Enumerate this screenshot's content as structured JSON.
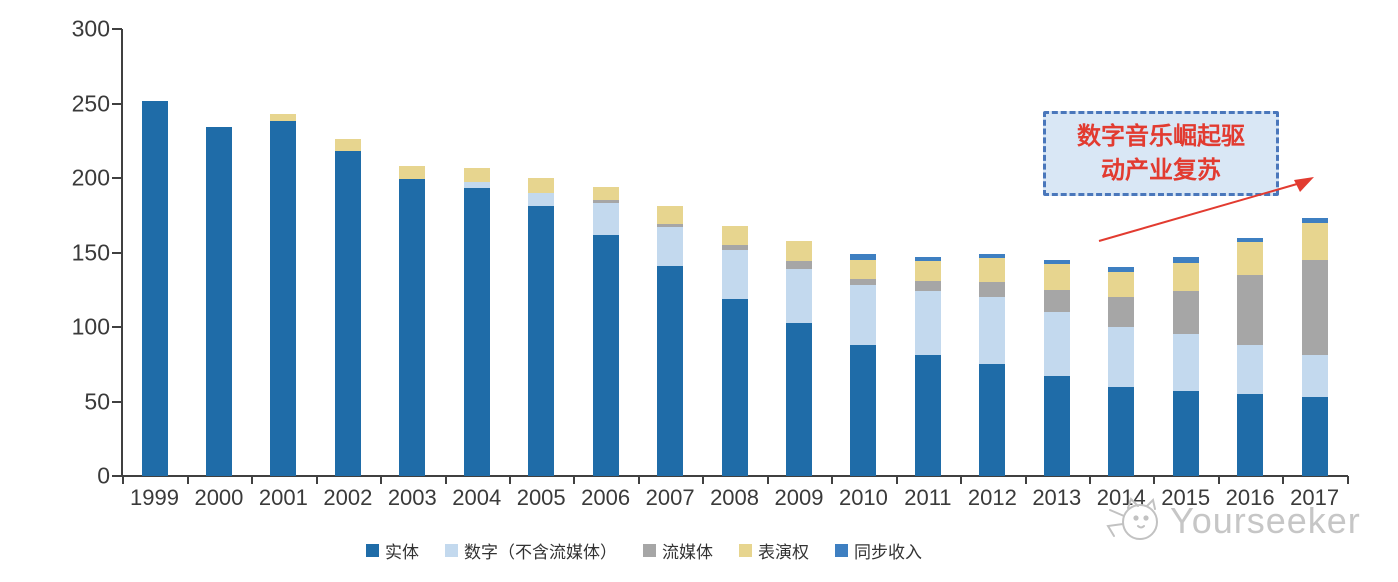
{
  "chart_data": {
    "type": "bar",
    "stacked": true,
    "title": "",
    "xlabel": "",
    "ylabel": "",
    "ylim": [
      0,
      300
    ],
    "y_ticks": [
      0,
      50,
      100,
      150,
      200,
      250,
      300
    ],
    "grid": false,
    "legend_position": "bottom",
    "categories": [
      "1999",
      "2000",
      "2001",
      "2002",
      "2003",
      "2004",
      "2005",
      "2006",
      "2007",
      "2008",
      "2009",
      "2010",
      "2011",
      "2012",
      "2013",
      "2014",
      "2015",
      "2016",
      "2017"
    ],
    "series": [
      {
        "name": "实体",
        "key": "physical",
        "color": "#1f6ca8",
        "values": [
          252,
          234,
          238,
          218,
          199,
          193,
          181,
          162,
          141,
          119,
          103,
          88,
          81,
          75,
          67,
          60,
          57,
          55,
          53
        ]
      },
      {
        "name": "数字（不含流媒体）",
        "key": "digital-excl-streaming",
        "color": "#c3d9ee",
        "values": [
          0,
          0,
          0,
          0,
          0,
          4,
          9,
          21,
          26,
          33,
          36,
          40,
          43,
          45,
          43,
          40,
          38,
          33,
          28
        ]
      },
      {
        "name": "流媒体",
        "key": "streaming",
        "color": "#a6a6a6",
        "values": [
          0,
          0,
          0,
          0,
          0,
          0,
          0,
          2,
          2,
          3,
          5,
          4,
          7,
          10,
          15,
          20,
          29,
          47,
          64
        ]
      },
      {
        "name": "表演权",
        "key": "performance-rights",
        "color": "#e7d58f",
        "values": [
          0,
          0,
          5,
          8,
          9,
          10,
          10,
          9,
          12,
          13,
          14,
          13,
          13,
          16,
          17,
          17,
          19,
          22,
          25
        ]
      },
      {
        "name": "同步收入",
        "key": "sync-revenue",
        "color": "#3e7fc1",
        "values": [
          0,
          0,
          0,
          0,
          0,
          0,
          0,
          0,
          0,
          0,
          0,
          4,
          3,
          3,
          3,
          3,
          4,
          3,
          3
        ]
      }
    ],
    "annotation": {
      "lines": [
        "数字音乐崛起驱",
        "动产业复苏"
      ],
      "text_color": "#e23b30",
      "box_fill": "#d9e7f5",
      "box_border_color": "#4a77bb",
      "arrow_color": "#e23b30"
    }
  },
  "watermark": {
    "text": "Yourseeker"
  }
}
